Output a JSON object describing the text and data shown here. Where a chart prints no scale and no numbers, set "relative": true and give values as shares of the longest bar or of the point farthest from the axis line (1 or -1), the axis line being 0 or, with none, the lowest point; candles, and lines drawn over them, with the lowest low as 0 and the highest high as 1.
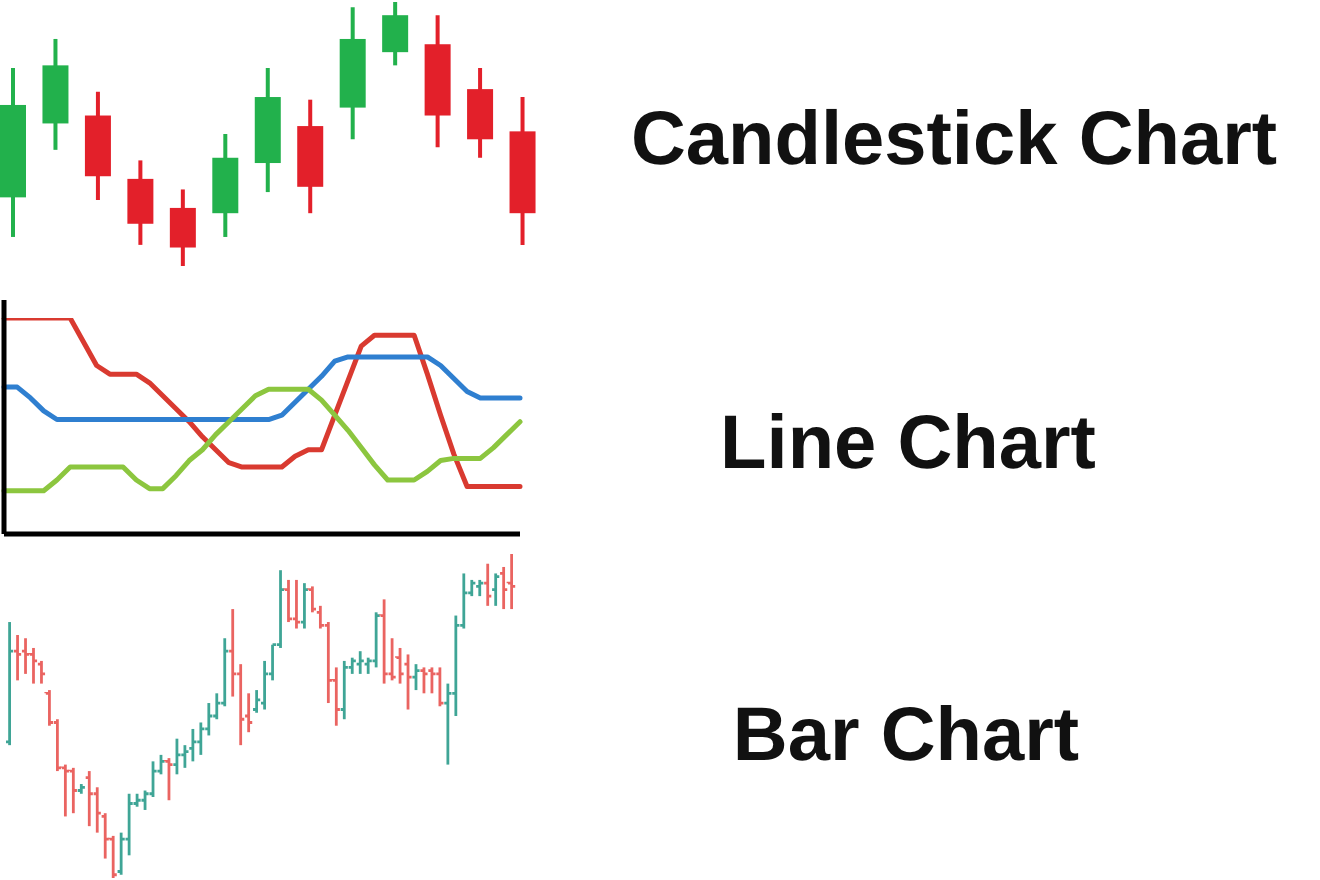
{
  "chart_data": [
    {
      "type": "candlestick",
      "annotations": [
        "Candlestick Chart"
      ],
      "relative": true,
      "categories": [
        null,
        null,
        null,
        null,
        null,
        null,
        null,
        null,
        null,
        null,
        null,
        null,
        null
      ],
      "ohlc": [
        [
          0.26,
          0.75,
          0.11,
          0.61
        ],
        [
          0.54,
          0.86,
          0.44,
          0.76
        ],
        [
          0.57,
          0.66,
          0.25,
          0.34
        ],
        [
          0.33,
          0.4,
          0.08,
          0.16
        ],
        [
          0.22,
          0.29,
          0,
          0.07
        ],
        [
          0.2,
          0.5,
          0.11,
          0.41
        ],
        [
          0.39,
          0.75,
          0.28,
          0.64
        ],
        [
          0.53,
          0.63,
          0.2,
          0.3
        ],
        [
          0.6,
          0.98,
          0.48,
          0.86
        ],
        [
          0.81,
          1,
          0.76,
          0.95
        ],
        [
          0.84,
          0.95,
          0.45,
          0.57
        ],
        [
          0.67,
          0.75,
          0.41,
          0.48
        ],
        [
          0.51,
          0.64,
          0.08,
          0.2
        ]
      ],
      "colors": [
        "#22b14c",
        "#22b14c",
        "#e3202a",
        "#e3202a",
        "#e3202a",
        "#22b14c",
        "#22b14c",
        "#e3202a",
        "#22b14c",
        "#22b14c",
        "#e3202a",
        "#e3202a",
        "#e3202a"
      ]
    },
    {
      "type": "line",
      "annotations": [
        "Line Chart"
      ],
      "relative": true,
      "marker": "none",
      "line_style": "solid",
      "categories": [
        null,
        null,
        null,
        null,
        null,
        null,
        null,
        null,
        null,
        null,
        null,
        null,
        null,
        null,
        null,
        null,
        null,
        null,
        null,
        null,
        null,
        null,
        null,
        null,
        null,
        null,
        null,
        null,
        null,
        null,
        null,
        null,
        null,
        null,
        null,
        null,
        null,
        null,
        null,
        null
      ],
      "series": [
        {
          "color": "#d93a30",
          "values": [
            1,
            1,
            1,
            1,
            1,
            1,
            0.89,
            0.78,
            0.74,
            0.74,
            0.74,
            0.7,
            0.64,
            0.58,
            0.52,
            0.45,
            0.39,
            0.33,
            0.31,
            0.31,
            0.31,
            0.31,
            0.36,
            0.39,
            0.39,
            0.55,
            0.71,
            0.87,
            0.92,
            0.92,
            0.92,
            0.92,
            0.74,
            0.55,
            0.37,
            0.22,
            0.22,
            0.22,
            0.22,
            0.22
          ]
        },
        {
          "color": "#2f7fd0",
          "values": [
            0.68,
            0.68,
            0.63,
            0.57,
            0.53,
            0.53,
            0.53,
            0.53,
            0.53,
            0.53,
            0.53,
            0.53,
            0.53,
            0.53,
            0.53,
            0.53,
            0.53,
            0.53,
            0.53,
            0.53,
            0.53,
            0.55,
            0.61,
            0.67,
            0.73,
            0.8,
            0.82,
            0.82,
            0.82,
            0.82,
            0.82,
            0.82,
            0.82,
            0.78,
            0.72,
            0.66,
            0.63,
            0.63,
            0.63,
            0.63
          ]
        },
        {
          "color": "#8cc63f",
          "values": [
            0.2,
            0.2,
            0.2,
            0.2,
            0.25,
            0.31,
            0.31,
            0.31,
            0.31,
            0.31,
            0.25,
            0.21,
            0.21,
            0.27,
            0.34,
            0.39,
            0.46,
            0.52,
            0.58,
            0.64,
            0.67,
            0.67,
            0.67,
            0.67,
            0.62,
            0.55,
            0.48,
            0.4,
            0.32,
            0.25,
            0.25,
            0.25,
            0.29,
            0.34,
            0.35,
            0.35,
            0.35,
            0.4,
            0.46,
            0.52
          ]
        }
      ]
    },
    {
      "type": "candlestick",
      "annotations": [
        "Bar Chart"
      ],
      "relative": true,
      "categories": [
        null,
        null,
        null,
        null,
        null,
        null,
        null,
        null,
        null,
        null,
        null,
        null,
        null,
        null,
        null,
        null,
        null,
        null,
        null,
        null,
        null,
        null,
        null,
        null,
        null,
        null,
        null,
        null,
        null,
        null,
        null,
        null,
        null,
        null,
        null,
        null,
        null,
        null,
        null,
        null,
        null,
        null,
        null,
        null,
        null,
        null,
        null,
        null,
        null,
        null,
        null,
        null,
        null,
        null,
        null,
        null,
        null,
        null,
        null,
        null,
        null,
        null,
        null,
        null
      ],
      "ohlc": [
        [
          0.42,
          0.79,
          0.41,
          0.7
        ],
        [
          0.7,
          0.75,
          0.61,
          0.69
        ],
        [
          0.7,
          0.74,
          0.63,
          0.69
        ],
        [
          0.69,
          0.71,
          0.6,
          0.67
        ],
        [
          0.66,
          0.67,
          0.6,
          0.63
        ],
        [
          0.57,
          0.58,
          0.47,
          0.48
        ],
        [
          0.48,
          0.49,
          0.33,
          0.34
        ],
        [
          0.34,
          0.35,
          0.19,
          0.33
        ],
        [
          0.33,
          0.34,
          0.2,
          0.27
        ],
        [
          0.27,
          0.29,
          0.26,
          0.28
        ],
        [
          0.31,
          0.33,
          0.16,
          0.26
        ],
        [
          0.26,
          0.28,
          0.14,
          0.2
        ],
        [
          0.19,
          0.2,
          0.06,
          0.12
        ],
        [
          0.12,
          0.13,
          0,
          0.01
        ],
        [
          0.02,
          0.14,
          0.01,
          0.12
        ],
        [
          0.12,
          0.26,
          0.07,
          0.23
        ],
        [
          0.23,
          0.26,
          0.22,
          0.24
        ],
        [
          0.24,
          0.27,
          0.21,
          0.26
        ],
        [
          0.26,
          0.36,
          0.25,
          0.33
        ],
        [
          0.33,
          0.38,
          0.32,
          0.36
        ],
        [
          0.36,
          0.37,
          0.24,
          0.35
        ],
        [
          0.35,
          0.43,
          0.32,
          0.38
        ],
        [
          0.38,
          0.41,
          0.34,
          0.39
        ],
        [
          0.4,
          0.46,
          0.36,
          0.42
        ],
        [
          0.42,
          0.48,
          0.38,
          0.46
        ],
        [
          0.46,
          0.54,
          0.44,
          0.5
        ],
        [
          0.5,
          0.57,
          0.49,
          0.54
        ],
        [
          0.54,
          0.74,
          0.53,
          0.7
        ],
        [
          0.7,
          0.83,
          0.56,
          0.63
        ],
        [
          0.63,
          0.66,
          0.41,
          0.49
        ],
        [
          0.5,
          0.57,
          0.45,
          0.48
        ],
        [
          0.52,
          0.58,
          0.51,
          0.55
        ],
        [
          0.54,
          0.67,
          0.52,
          0.63
        ],
        [
          0.63,
          0.72,
          0.61,
          0.72
        ],
        [
          0.72,
          0.95,
          0.71,
          0.89
        ],
        [
          0.89,
          0.92,
          0.79,
          0.8
        ],
        [
          0.8,
          0.92,
          0.77,
          0.79
        ],
        [
          0.79,
          0.91,
          0.77,
          0.89
        ],
        [
          0.89,
          0.9,
          0.82,
          0.83
        ],
        [
          0.82,
          0.84,
          0.77,
          0.78
        ],
        [
          0.78,
          0.79,
          0.54,
          0.61
        ],
        [
          0.61,
          0.65,
          0.47,
          0.52
        ],
        [
          0.52,
          0.67,
          0.49,
          0.65
        ],
        [
          0.65,
          0.68,
          0.63,
          0.67
        ],
        [
          0.66,
          0.7,
          0.63,
          0.67
        ],
        [
          0.66,
          0.68,
          0.63,
          0.67
        ],
        [
          0.67,
          0.82,
          0.65,
          0.81
        ],
        [
          0.81,
          0.86,
          0.6,
          0.63
        ],
        [
          0.63,
          0.74,
          0.61,
          0.62
        ],
        [
          0.68,
          0.71,
          0.6,
          0.63
        ],
        [
          0.66,
          0.69,
          0.52,
          0.62
        ],
        [
          0.62,
          0.66,
          0.58,
          0.64
        ],
        [
          0.64,
          0.65,
          0.57,
          0.63
        ],
        [
          0.64,
          0.65,
          0.57,
          0.63
        ],
        [
          0.63,
          0.65,
          0.53,
          0.54
        ],
        [
          0.54,
          0.6,
          0.35,
          0.57
        ],
        [
          0.57,
          0.81,
          0.5,
          0.78
        ],
        [
          0.78,
          0.94,
          0.77,
          0.88
        ],
        [
          0.88,
          0.92,
          0.87,
          0.91
        ],
        [
          0.9,
          0.92,
          0.87,
          0.91
        ],
        [
          0.91,
          0.97,
          0.84,
          0.87
        ],
        [
          0.89,
          0.94,
          0.84,
          0.93
        ],
        [
          0.94,
          0.96,
          0.83,
          0.89
        ],
        [
          0.91,
          1,
          0.83,
          0.9
        ]
      ],
      "colors": [
        "#3fa596",
        "#ea6461",
        "#ea6461",
        "#ea6461",
        "#ea6461",
        "#ea6461",
        "#ea6461",
        "#ea6461",
        "#ea6461",
        "#3fa596",
        "#ea6461",
        "#ea6461",
        "#ea6461",
        "#ea6461",
        "#3fa596",
        "#3fa596",
        "#3fa596",
        "#3fa596",
        "#3fa596",
        "#3fa596",
        "#ea6461",
        "#3fa596",
        "#3fa596",
        "#3fa596",
        "#3fa596",
        "#3fa596",
        "#3fa596",
        "#3fa596",
        "#ea6461",
        "#ea6461",
        "#ea6461",
        "#3fa596",
        "#3fa596",
        "#3fa596",
        "#3fa596",
        "#ea6461",
        "#ea6461",
        "#3fa596",
        "#ea6461",
        "#ea6461",
        "#ea6461",
        "#ea6461",
        "#3fa596",
        "#3fa596",
        "#3fa596",
        "#3fa596",
        "#3fa596",
        "#ea6461",
        "#ea6461",
        "#ea6461",
        "#ea6461",
        "#3fa596",
        "#ea6461",
        "#ea6461",
        "#ea6461",
        "#3fa596",
        "#3fa596",
        "#3fa596",
        "#3fa596",
        "#3fa596",
        "#ea6461",
        "#3fa596",
        "#ea6461",
        "#ea6461"
      ]
    }
  ]
}
